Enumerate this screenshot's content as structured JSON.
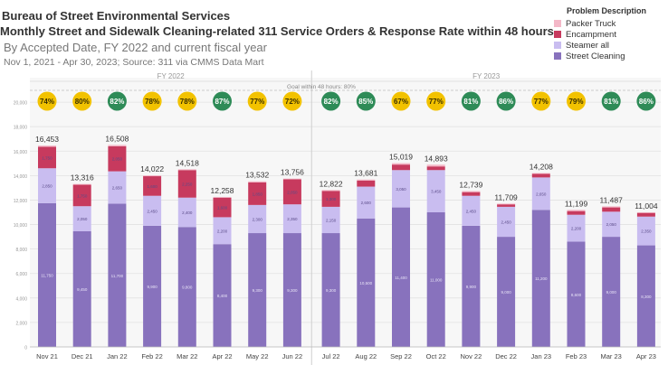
{
  "header": {
    "line1": "Bureau of Street Environmental Services",
    "line2": "Monthly Street and Sidewalk Cleaning-related 311 Service Orders & Response Rate within 48 hours",
    "line3": "By Accepted Date, FY 2022 and current fiscal year",
    "line4": "Nov 1, 2021 - Apr 30, 2023; Source: 311 via CMMS Data Mart"
  },
  "legend": {
    "title": "Problem Description",
    "items": [
      {
        "label": "Packer Truck",
        "color": "#f4b8c8"
      },
      {
        "label": "Encampment",
        "color": "#c73a5e"
      },
      {
        "label": "Steamer all",
        "color": "#c9bdf0"
      },
      {
        "label": "Street Cleaning",
        "color": "#8872bd"
      }
    ]
  },
  "chart_data": {
    "type": "bar",
    "stacked": true,
    "fiscal_years": [
      {
        "label": "FY 2022",
        "categories": [
          "Nov 21",
          "Dec 21",
          "Jan 22",
          "Feb 22",
          "Mar 22",
          "Apr 22",
          "May 22",
          "Jun 22"
        ]
      },
      {
        "label": "FY 2023",
        "categories": [
          "Jul 22",
          "Aug 22",
          "Sep 22",
          "Oct 22",
          "Nov 22",
          "Dec 22",
          "Jan 23",
          "Feb 23",
          "Mar 23",
          "Apr 23"
        ]
      }
    ],
    "categories": [
      "Nov 21",
      "Dec 21",
      "Jan 22",
      "Feb 22",
      "Mar 22",
      "Apr 22",
      "May 22",
      "Jun 22",
      "Jul 22",
      "Aug 22",
      "Sep 22",
      "Oct 22",
      "Nov 22",
      "Dec 22",
      "Jan 23",
      "Feb 23",
      "Mar 23",
      "Apr 23"
    ],
    "totals": [
      16453,
      13316,
      16508,
      14022,
      14518,
      12258,
      13532,
      13756,
      12822,
      13681,
      15019,
      14893,
      12739,
      11709,
      14208,
      11199,
      11487,
      11004
    ],
    "total_labels": [
      "16,453",
      "13,316",
      "16,508",
      "14,022",
      "14,518",
      "12,258",
      "13,532",
      "13,756",
      "12,822",
      "13,681",
      "15,019",
      "14,893",
      "12,739",
      "11,709",
      "14,208",
      "11,199",
      "11,487",
      "11,004"
    ],
    "series": [
      {
        "name": "Street Cleaning",
        "color": "#8872bd",
        "values": [
          11750,
          9450,
          11700,
          9900,
          9800,
          8400,
          9300,
          9300,
          9300,
          10500,
          11400,
          11000,
          9900,
          9000,
          11200,
          8600,
          9000,
          8300
        ]
      },
      {
        "name": "Steamer all",
        "color": "#c9bdf0",
        "values": [
          2850,
          2050,
          2650,
          2450,
          2400,
          2200,
          2300,
          2350,
          2150,
          2600,
          3050,
          3450,
          2450,
          2450,
          2650,
          2200,
          2050,
          2350
        ]
      },
      {
        "name": "Encampment",
        "color": "#c73a5e",
        "values": [
          1750,
          1750,
          2050,
          1600,
          2250,
          1600,
          1850,
          2050,
          1300,
          500,
          450,
          300,
          300,
          200,
          300,
          300,
          350,
          300
        ]
      },
      {
        "name": "Packer Truck",
        "color": "#f4b8c8",
        "values": [
          103,
          66,
          108,
          72,
          68,
          58,
          82,
          56,
          72,
          81,
          119,
          143,
          89,
          59,
          58,
          99,
          87,
          54
        ]
      }
    ],
    "response_rate_labels": [
      "74%",
      "80%",
      "82%",
      "78%",
      "78%",
      "87%",
      "77%",
      "72%",
      "82%",
      "85%",
      "67%",
      "77%",
      "81%",
      "86%",
      "77%",
      "79%",
      "81%",
      "86%"
    ],
    "response_rate_colors": [
      "#f2c200",
      "#f2c200",
      "#2e8b57",
      "#f2c200",
      "#f2c200",
      "#2e8b57",
      "#f2c200",
      "#f2c200",
      "#2e8b57",
      "#2e8b57",
      "#f2c200",
      "#f2c200",
      "#2e8b57",
      "#2e8b57",
      "#f2c200",
      "#f2c200",
      "#2e8b57",
      "#2e8b57"
    ],
    "goal_label": "Goal within 48 hours: 80%",
    "ylim": [
      0,
      22000
    ],
    "yticks": [
      0,
      2000,
      4000,
      6000,
      8000,
      10000,
      12000,
      14000,
      16000,
      18000,
      20000
    ],
    "grid": true
  }
}
